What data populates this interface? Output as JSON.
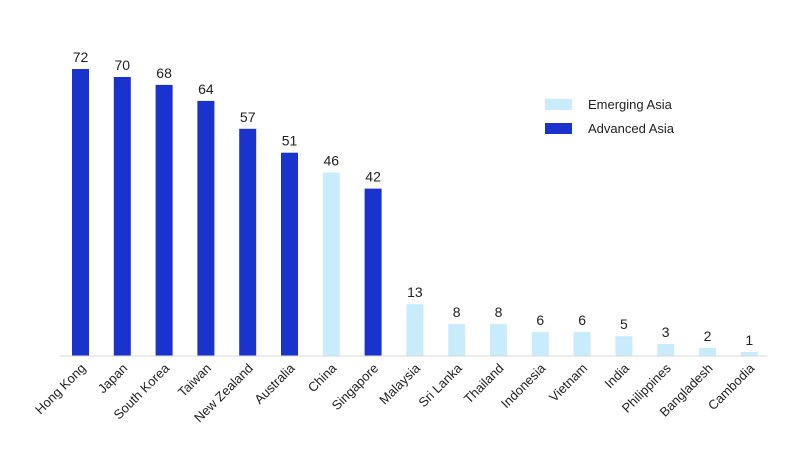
{
  "chart_data": {
    "type": "bar",
    "title": "",
    "xlabel": "",
    "ylabel": "",
    "ylim": [
      0,
      72
    ],
    "grid": false,
    "legend_position": "top-right",
    "categories": [
      "Hong Kong",
      "Japan",
      "South Korea",
      "Taiwan",
      "New Zealand",
      "Australia",
      "China",
      "Singapore",
      "Malaysia",
      "Sri Lanka",
      "Thailand",
      "Indonesia",
      "Vietnam",
      "India",
      "Philippines",
      "Bangladesh",
      "Cambodia"
    ],
    "values": [
      72,
      70,
      68,
      64,
      57,
      51,
      46,
      42,
      13,
      8,
      8,
      6,
      6,
      5,
      3,
      2,
      1
    ],
    "group": [
      "Advanced Asia",
      "Advanced Asia",
      "Advanced Asia",
      "Advanced Asia",
      "Advanced Asia",
      "Advanced Asia",
      "Emerging Asia",
      "Advanced Asia",
      "Emerging Asia",
      "Emerging Asia",
      "Emerging Asia",
      "Emerging Asia",
      "Emerging Asia",
      "Emerging Asia",
      "Emerging Asia",
      "Emerging Asia",
      "Emerging Asia"
    ],
    "legend": [
      {
        "name": "Emerging Asia",
        "color": "#c8ecfb"
      },
      {
        "name": "Advanced Asia",
        "color": "#1a33cc"
      }
    ]
  }
}
